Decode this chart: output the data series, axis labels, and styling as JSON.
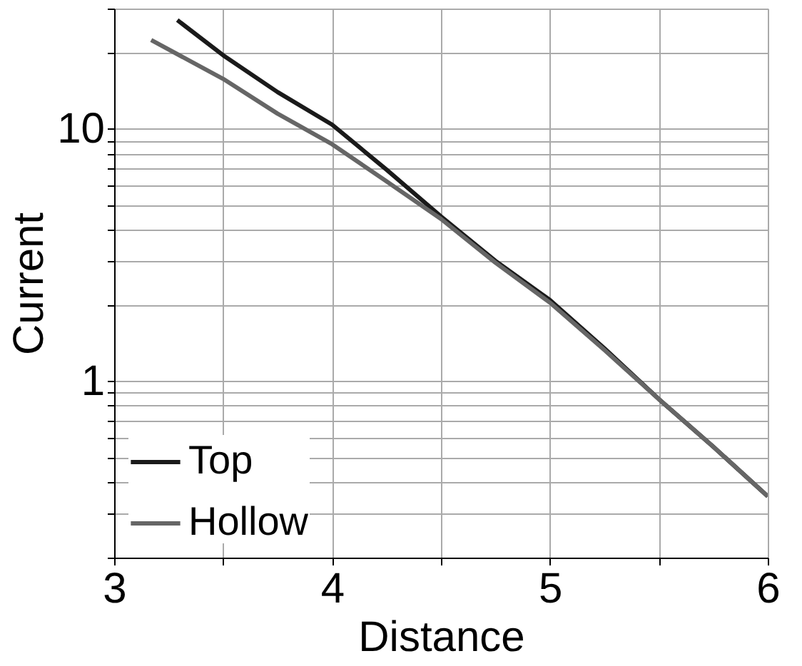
{
  "chart_data": {
    "type": "line",
    "xlabel": "Distance",
    "ylabel": "Current",
    "log": "y",
    "grid": true,
    "legend": "bottom left",
    "line_style": "solid",
    "marker": "none",
    "xlim": [
      3,
      6
    ],
    "xticks": [
      3,
      {
        "value": 3.5,
        "label": null
      },
      4,
      {
        "value": 4.5,
        "label": null
      },
      5,
      {
        "value": 5.5,
        "label": null
      },
      6
    ],
    "ylim": [
      0.2,
      30
    ],
    "yticks": [
      {
        "value": 0.2,
        "label": null
      },
      {
        "value": 0.3,
        "label": null
      },
      {
        "value": 0.4,
        "label": null
      },
      {
        "value": 0.5,
        "label": null
      },
      {
        "value": 0.6,
        "label": null
      },
      {
        "value": 0.7,
        "label": null
      },
      {
        "value": 0.8,
        "label": null
      },
      {
        "value": 0.9,
        "label": null
      },
      1,
      {
        "value": 2,
        "label": null
      },
      {
        "value": 3,
        "label": null
      },
      {
        "value": 4,
        "label": null
      },
      {
        "value": 5,
        "label": null
      },
      {
        "value": 6,
        "label": null
      },
      {
        "value": 7,
        "label": null
      },
      {
        "value": 8,
        "label": null
      },
      {
        "value": 9,
        "label": null
      },
      10,
      {
        "value": 20,
        "label": null
      },
      {
        "value": 30,
        "label": null
      }
    ],
    "series": [
      {
        "name": "Top",
        "color": "#1a1a1a",
        "x": [
          3.29,
          3.5,
          3.75,
          4,
          4.25,
          4.5,
          4.75,
          5,
          5.25,
          5.5,
          5.75,
          6
        ],
        "values": [
          27,
          19.6,
          14,
          10.4,
          6.9,
          4.5,
          3.0,
          2.1,
          1.35,
          0.85,
          0.55,
          0.35
        ]
      },
      {
        "name": "Hollow",
        "color": "#666666",
        "x": [
          3.17,
          3.5,
          3.75,
          4,
          4.25,
          4.5,
          4.75,
          5,
          5.25,
          5.5,
          5.75,
          6
        ],
        "values": [
          22.5,
          15.8,
          11.5,
          8.7,
          6.2,
          4.4,
          2.95,
          2.05,
          1.33,
          0.85,
          0.55,
          0.35
        ]
      }
    ]
  }
}
